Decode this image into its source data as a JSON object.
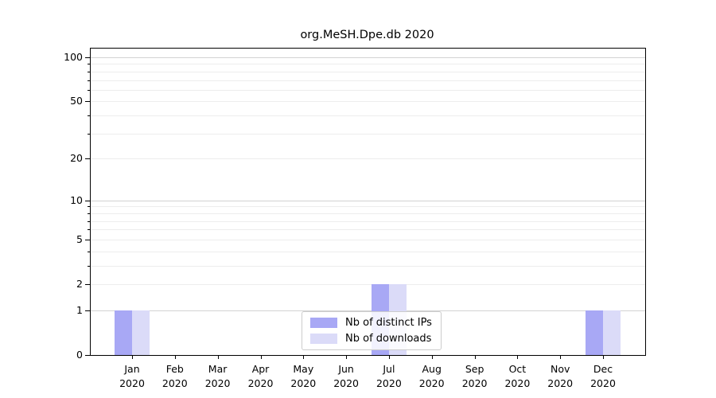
{
  "chart_data": {
    "type": "bar",
    "title": "org.MeSH.Dpe.db 2020",
    "xlabel": "",
    "ylabel": "",
    "y_scale": "log1p",
    "ylim": [
      0,
      115
    ],
    "grid": true,
    "legend_position": "lower center",
    "categories": [
      "Jan",
      "Feb",
      "Mar",
      "Apr",
      "May",
      "Jun",
      "Jul",
      "Aug",
      "Sep",
      "Oct",
      "Nov",
      "Dec"
    ],
    "category_year": "2020",
    "series": [
      {
        "name": "Nb of distinct IPs",
        "color": "#a8a8f5",
        "values": [
          1,
          0,
          0,
          0,
          0,
          0,
          2,
          0,
          0,
          0,
          0,
          1
        ]
      },
      {
        "name": "Nb of downloads",
        "color": "#dbdbf8",
        "values": [
          1,
          0,
          0,
          0,
          0,
          0,
          2,
          0,
          0,
          0,
          0,
          1
        ]
      }
    ],
    "y_major_ticks": [
      0,
      1,
      2,
      5,
      10,
      20,
      50,
      100
    ],
    "y_minor_ticks": [
      3,
      4,
      6,
      7,
      8,
      9,
      30,
      40,
      60,
      70,
      80,
      90
    ],
    "major_grid_values": [
      1,
      10,
      100
    ],
    "colors": {
      "major_grid": "#d2d2d2",
      "minor_grid": "#ededed",
      "axis": "#000000",
      "legend_border": "#cccccc"
    }
  }
}
